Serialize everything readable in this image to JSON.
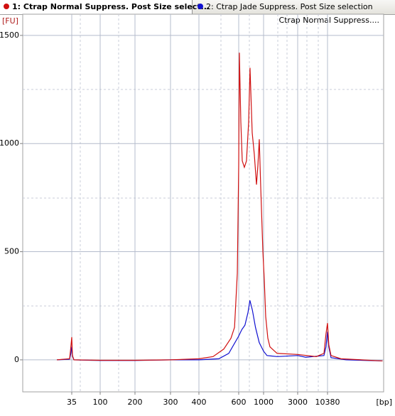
{
  "chart_data": {
    "type": "line",
    "title": "Ctrap Normal Suppress....",
    "ylabel": "[FU]",
    "xlabel": "[bp]",
    "ylim": [
      -148,
      1598
    ],
    "yticks": [
      0,
      500,
      1000,
      1500
    ],
    "grid": true,
    "xticks": [
      35,
      100,
      200,
      300,
      400,
      600,
      1000,
      3000,
      10380
    ],
    "series": [
      {
        "name": "1: Ctrap Normal Suppress. Post Size select...",
        "color": "#d01010",
        "x": [
          1,
          30,
          32,
          35,
          36.6,
          40,
          100,
          200,
          300,
          400,
          471,
          525,
          561,
          579,
          593,
          600,
          611,
          634,
          657,
          691,
          725,
          760,
          782,
          817,
          851,
          886,
          909,
          931,
          954,
          989,
          1042,
          1125,
          1250,
          1375,
          1792,
          3000,
          7600,
          9500,
          10000,
          10380,
          10700,
          11250,
          13700,
          24000
        ],
        "values": [
          0,
          5,
          40,
          105,
          20,
          0,
          -2,
          -2,
          0,
          5,
          15,
          50,
          100,
          150,
          400,
          900,
          1420,
          1100,
          920,
          890,
          920,
          1100,
          1350,
          1050,
          950,
          810,
          900,
          1020,
          800,
          500,
          370,
          200,
          100,
          60,
          30,
          25,
          15,
          30,
          120,
          170,
          70,
          20,
          5,
          -5
        ]
      },
      {
        "name": "2: Ctrap Jade Suppress. Post Size selection",
        "color": "#1010d0",
        "x": [
          1,
          30,
          33,
          35,
          37,
          40,
          100,
          200,
          300,
          400,
          500,
          550,
          600,
          650,
          700,
          750,
          780,
          820,
          870,
          930,
          1000,
          1200,
          1800,
          3000,
          5000,
          9500,
          10000,
          10380,
          10700,
          11250,
          15000,
          24000
        ],
        "values": [
          0,
          3,
          30,
          60,
          15,
          0,
          -3,
          -3,
          0,
          0,
          5,
          30,
          110,
          140,
          160,
          220,
          275,
          230,
          150,
          80,
          40,
          20,
          15,
          20,
          12,
          20,
          60,
          130,
          60,
          10,
          0,
          -5
        ]
      }
    ]
  }
}
